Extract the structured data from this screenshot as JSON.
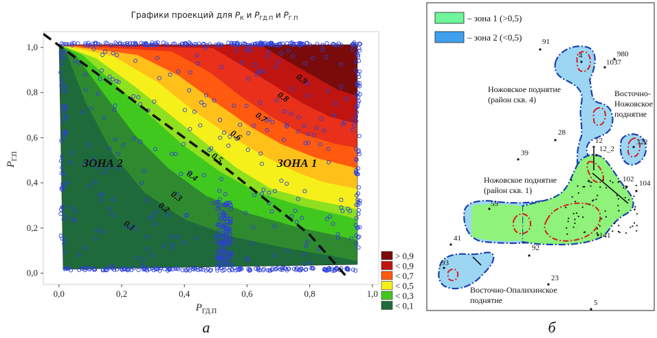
{
  "chart_data": {
    "type": "contour-scatter",
    "title_parts": [
      "Графики проекций для ",
      "P",
      "К",
      " и ",
      "P",
      "ГД.П",
      " и ",
      "P",
      "Г.П"
    ],
    "xlabel": {
      "main": "P",
      "sub": "ГД.П"
    },
    "ylabel": {
      "main": "P",
      "sub": "Г.П"
    },
    "xlim": [
      -0.05,
      1.02
    ],
    "ylim": [
      -0.05,
      1.07
    ],
    "x_ticks": [
      "0,0",
      "0,2",
      "0,4",
      "0,6",
      "0,8",
      "1,0"
    ],
    "x_tick_values": [
      0,
      0.2,
      0.4,
      0.6,
      0.8,
      1.0
    ],
    "y_ticks": [
      "0,0",
      "0,2",
      "0,4",
      "0,6",
      "0,8",
      "1,0"
    ],
    "y_tick_values": [
      0,
      0.2,
      0.4,
      0.6,
      0.8,
      1.0
    ],
    "contour_labels": [
      {
        "text": "0.1",
        "x": 0.22,
        "y": 0.2
      },
      {
        "text": "0.2",
        "x": 0.33,
        "y": 0.28
      },
      {
        "text": "0.3",
        "x": 0.37,
        "y": 0.33
      },
      {
        "text": "0.4",
        "x": 0.42,
        "y": 0.42
      },
      {
        "text": "0.5",
        "x": 0.5,
        "y": 0.5
      },
      {
        "text": "0.6",
        "x": 0.56,
        "y": 0.6
      },
      {
        "text": "0.7",
        "x": 0.64,
        "y": 0.68
      },
      {
        "text": "0.8",
        "x": 0.71,
        "y": 0.77
      },
      {
        "text": "0.9",
        "x": 0.77,
        "y": 0.85
      }
    ],
    "zone_labels": [
      {
        "text": "ЗОНА 2",
        "x": 0.14,
        "y": 0.47
      },
      {
        "text": "ЗОНА 1",
        "x": 0.76,
        "y": 0.47
      }
    ],
    "legend": [
      {
        "label": "> 0,9",
        "color": "#7a0b0b"
      },
      {
        "label": "< 0,9",
        "color": "#bf1410"
      },
      {
        "label": "< 0,7",
        "color": "#ff5a10"
      },
      {
        "label": "< 0,5",
        "color": "#f5f01a"
      },
      {
        "label": "< 0,3",
        "color": "#41c81e"
      },
      {
        "label": "< 0,1",
        "color": "#1f6a3a"
      }
    ],
    "boundary_line": [
      [
        -0.05,
        1.06
      ],
      [
        0.3,
        0.7
      ],
      [
        0.5,
        0.5
      ],
      [
        0.72,
        0.26
      ],
      [
        0.8,
        0.17
      ],
      [
        0.92,
        -0.02
      ]
    ],
    "panel_label": "а"
  },
  "map": {
    "panel_label": "б",
    "legend": [
      {
        "label": "– зона 1 (>0,5)",
        "color": "#6ff59a"
      },
      {
        "label": "– зона 2 (<0,5)",
        "color": "#3fa0ee"
      }
    ],
    "region_labels": [
      [
        "Ножовское поднятие",
        "(район скв. 4)"
      ],
      [
        "Восточно-",
        "Ножовское",
        "поднятие"
      ],
      [
        "Ножовское поднятие",
        "(район скв. 1)"
      ],
      [
        "Восточно-Опалихинское",
        "поднятие"
      ]
    ],
    "wells": [
      "91",
      "980",
      "1037",
      "4",
      "28",
      "12",
      "12_2",
      "322",
      "39",
      "102",
      "104",
      "59",
      "141",
      "41",
      "92",
      "93",
      "23",
      "5"
    ]
  }
}
